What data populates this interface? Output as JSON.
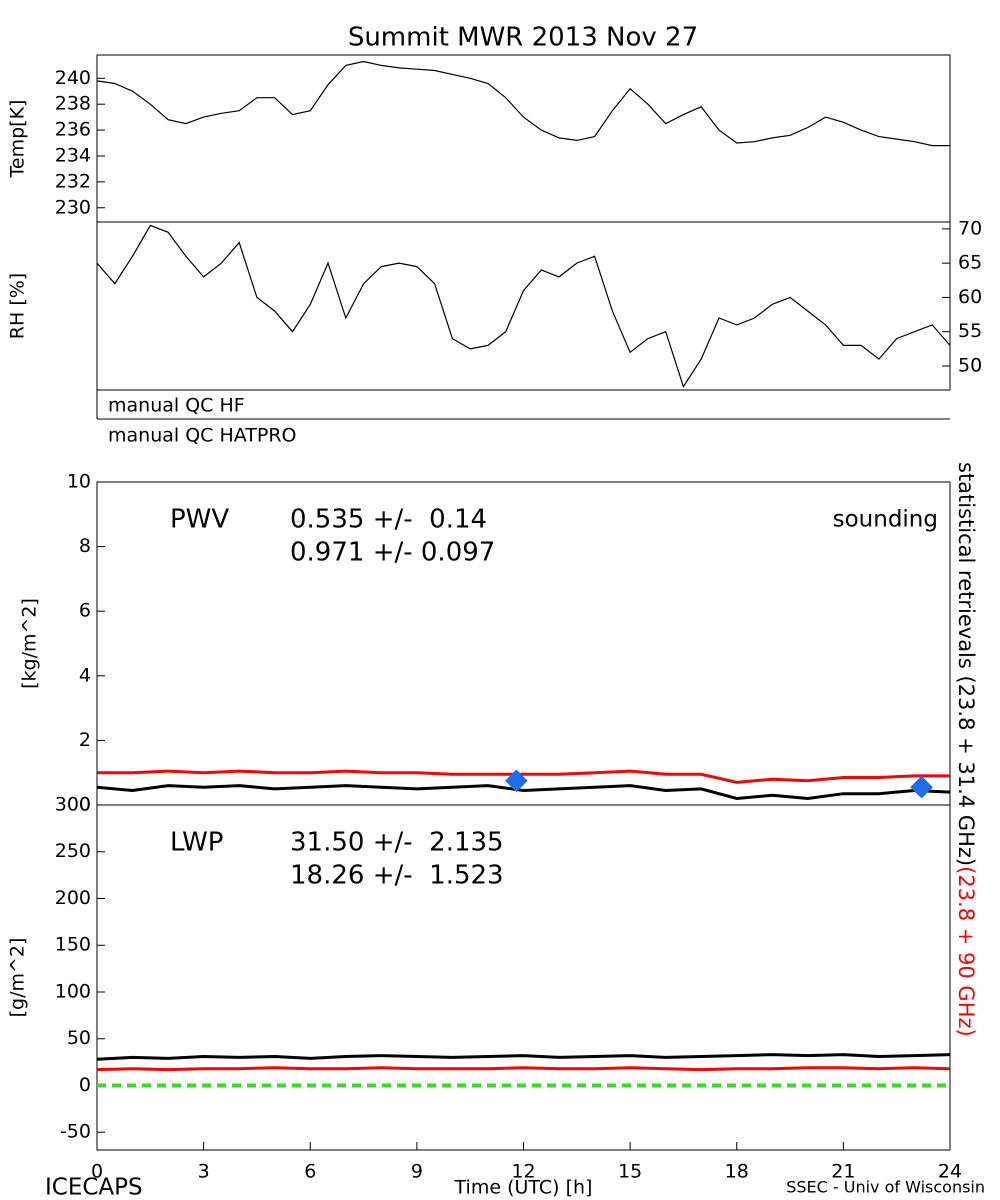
{
  "title": "Summit MWR 2013 Nov 27",
  "qc_labels": [
    "manual QC HF",
    "manual QC HATPRO"
  ],
  "side_labels": [
    {
      "text": "statistical retrievals (23.8 + 31.4 GHz)",
      "color": "#000000"
    },
    {
      "text": "(23.8 + 90 GHz)",
      "color": "#ff0000"
    }
  ],
  "footer": {
    "left": "ICECAPS",
    "right": "SSEC - Univ of Wisconsin"
  },
  "chart_data": [
    {
      "type": "line",
      "ylabel": "Temp[K]",
      "yaxis_side": "left",
      "xlim": [
        0,
        24
      ],
      "ylim": [
        228.9,
        241.8
      ],
      "yticks": [
        230,
        232,
        234,
        236,
        238,
        240
      ],
      "x": [
        0,
        0.5,
        1,
        1.5,
        2,
        2.5,
        3,
        3.5,
        4,
        4.5,
        5,
        5.5,
        6,
        6.5,
        7,
        7.5,
        8,
        8.5,
        9,
        9.5,
        10,
        10.5,
        11,
        11.5,
        12,
        12.5,
        13,
        13.5,
        14,
        14.5,
        15,
        15.5,
        16,
        16.5,
        17,
        17.5,
        18,
        18.5,
        19,
        19.5,
        20,
        20.5,
        21,
        21.5,
        22,
        22.5,
        23,
        23.5,
        24
      ],
      "series": [
        {
          "color": "#000000",
          "values": [
            239.8,
            239.6,
            239,
            238,
            236.8,
            236.5,
            237,
            237.3,
            237.5,
            238.5,
            238.5,
            237.2,
            237.5,
            239.5,
            241,
            241.3,
            241,
            240.8,
            240.7,
            240.6,
            240.3,
            240,
            239.6,
            238.5,
            237,
            236,
            235.4,
            235.2,
            235.5,
            237.5,
            239.2,
            238,
            236.5,
            237.2,
            237.8,
            236,
            235,
            235.1,
            235.4,
            235.6,
            236.2,
            237,
            236.6,
            236,
            235.5,
            235.3,
            235.1,
            234.8,
            234.8
          ]
        }
      ]
    },
    {
      "type": "line",
      "ylabel": "RH [%]",
      "yaxis_side": "right",
      "xlim": [
        0,
        24
      ],
      "ylim": [
        46.5,
        71
      ],
      "yticks": [
        50,
        55,
        60,
        65,
        70
      ],
      "x": [
        0,
        0.5,
        1,
        1.5,
        2,
        2.5,
        3,
        3.5,
        4,
        4.5,
        5,
        5.5,
        6,
        6.5,
        7,
        7.5,
        8,
        8.5,
        9,
        9.5,
        10,
        10.5,
        11,
        11.5,
        12,
        12.5,
        13,
        13.5,
        14,
        14.5,
        15,
        15.5,
        16,
        16.5,
        17,
        17.5,
        18,
        18.5,
        19,
        19.5,
        20,
        20.5,
        21,
        21.5,
        22,
        22.5,
        23,
        23.5,
        24
      ],
      "series": [
        {
          "color": "#000000",
          "values": [
            65,
            62,
            66,
            70.5,
            69.5,
            66,
            63,
            65,
            68,
            60,
            58,
            55,
            59,
            65,
            57,
            62,
            64.5,
            65,
            64.5,
            62,
            54,
            52.5,
            53,
            55,
            61,
            64,
            63,
            65,
            66,
            58,
            52,
            54,
            55,
            47,
            51,
            57,
            56,
            57,
            59,
            60,
            58,
            56,
            53,
            53,
            51,
            54,
            55,
            56,
            53
          ]
        }
      ]
    },
    {
      "type": "line",
      "ylabel": "[kg/m^2]",
      "yaxis_side": "left",
      "label": "PWV",
      "stats": [
        "0.535 +/-  0.14",
        "0.971 +/- 0.097"
      ],
      "xlim": [
        0,
        24
      ],
      "ylim": [
        0,
        10
      ],
      "yticks": [
        0,
        2,
        4,
        6,
        8,
        10
      ],
      "x": [
        0,
        1,
        2,
        3,
        4,
        5,
        6,
        7,
        8,
        9,
        10,
        11,
        12,
        13,
        14,
        15,
        16,
        17,
        18,
        19,
        20,
        21,
        22,
        23,
        24
      ],
      "series": [
        {
          "color": "#000000",
          "values": [
            0.55,
            0.45,
            0.6,
            0.55,
            0.6,
            0.5,
            0.55,
            0.6,
            0.55,
            0.5,
            0.55,
            0.6,
            0.45,
            0.5,
            0.55,
            0.6,
            0.45,
            0.5,
            0.2,
            0.3,
            0.2,
            0.35,
            0.35,
            0.45,
            0.4
          ]
        },
        {
          "color": "#ff0000",
          "values": [
            1.0,
            1.0,
            1.05,
            1.0,
            1.05,
            1.0,
            1.0,
            1.05,
            1.0,
            1.0,
            0.95,
            0.95,
            0.95,
            0.95,
            1.0,
            1.05,
            0.95,
            0.95,
            0.7,
            0.8,
            0.75,
            0.85,
            0.85,
            0.9,
            0.9
          ]
        },
        {
          "type": "scatter",
          "name": "sounding",
          "color": "#1e6fe6",
          "x": [
            11.8,
            23.2
          ],
          "values": [
            0.75,
            0.55
          ]
        }
      ]
    },
    {
      "type": "line",
      "ylabel": "[g/m^2]",
      "yaxis_side": "left",
      "label": "LWP",
      "stats": [
        "31.50 +/-  2.135",
        "18.26 +/-  1.523"
      ],
      "xlim": [
        0,
        24
      ],
      "ylim": [
        -69,
        300
      ],
      "yticks": [
        -50,
        0,
        50,
        100,
        150,
        200,
        250,
        300
      ],
      "xlabel": "Time (UTC) [h]",
      "xticks": [
        0,
        3,
        6,
        9,
        12,
        15,
        18,
        21,
        24
      ],
      "reference_line": {
        "value": 0,
        "color": "#33dd22"
      },
      "x": [
        0,
        1,
        2,
        3,
        4,
        5,
        6,
        7,
        8,
        9,
        10,
        11,
        12,
        13,
        14,
        15,
        16,
        17,
        18,
        19,
        20,
        21,
        22,
        23,
        24
      ],
      "series": [
        {
          "color": "#000000",
          "values": [
            28,
            30,
            29,
            31,
            30,
            31,
            29,
            31,
            32,
            31,
            30,
            31,
            32,
            30,
            31,
            32,
            30,
            31,
            32,
            33,
            32,
            33,
            31,
            32,
            33
          ]
        },
        {
          "color": "#ff0000",
          "values": [
            17,
            18,
            17,
            18,
            18,
            19,
            18,
            18,
            19,
            18,
            18,
            18,
            19,
            18,
            18,
            19,
            18,
            17,
            18,
            18,
            19,
            19,
            18,
            19,
            18
          ]
        }
      ]
    }
  ]
}
